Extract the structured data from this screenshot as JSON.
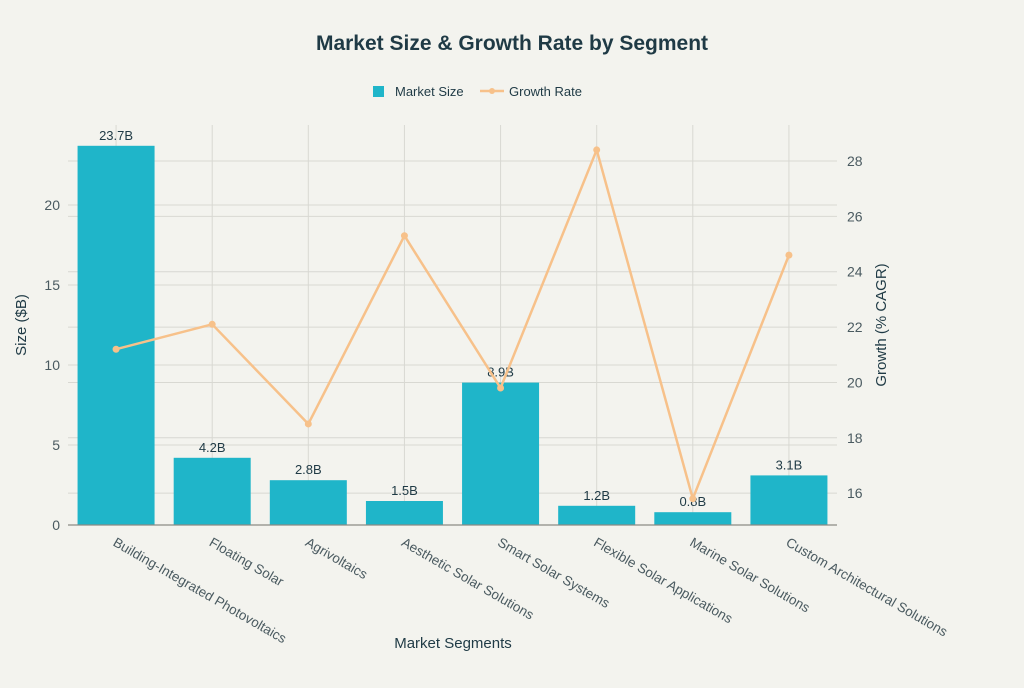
{
  "chart_data": {
    "type": "bar",
    "title": "Market Size & Growth Rate by Segment",
    "xlabel": "Market Segments",
    "ylabel": "Size ($B)",
    "y2label": "Growth (% CAGR)",
    "legend_position": "top-center",
    "grid": true,
    "categories": [
      "Building-Integrated Photovoltaics",
      "Floating Solar",
      "Agrivoltaics",
      "Aesthetic Solar Solutions",
      "Smart Solar Systems",
      "Flexible Solar Applications",
      "Marine Solar Solutions",
      "Custom Architectural Solutions"
    ],
    "ylim": [
      0,
      25
    ],
    "y_ticks": [
      0,
      5,
      10,
      15,
      20
    ],
    "y2lim": [
      14.85,
      29.3
    ],
    "y2_ticks": [
      16,
      18,
      20,
      22,
      24,
      26,
      28
    ],
    "series": [
      {
        "name": "Market Size",
        "type": "bar",
        "axis": "left",
        "color": "#1fb5c9",
        "values": [
          23.7,
          4.2,
          2.8,
          1.5,
          8.9,
          1.2,
          0.8,
          3.1
        ],
        "labels": [
          "23.7B",
          "4.2B",
          "2.8B",
          "1.5B",
          "8.9B",
          "1.2B",
          "0.8B",
          "3.1B"
        ]
      },
      {
        "name": "Growth Rate",
        "type": "line",
        "axis": "right",
        "color": "#f7c18a",
        "values": [
          21.2,
          22.1,
          18.5,
          25.3,
          19.8,
          28.4,
          15.8,
          24.6
        ]
      }
    ]
  }
}
